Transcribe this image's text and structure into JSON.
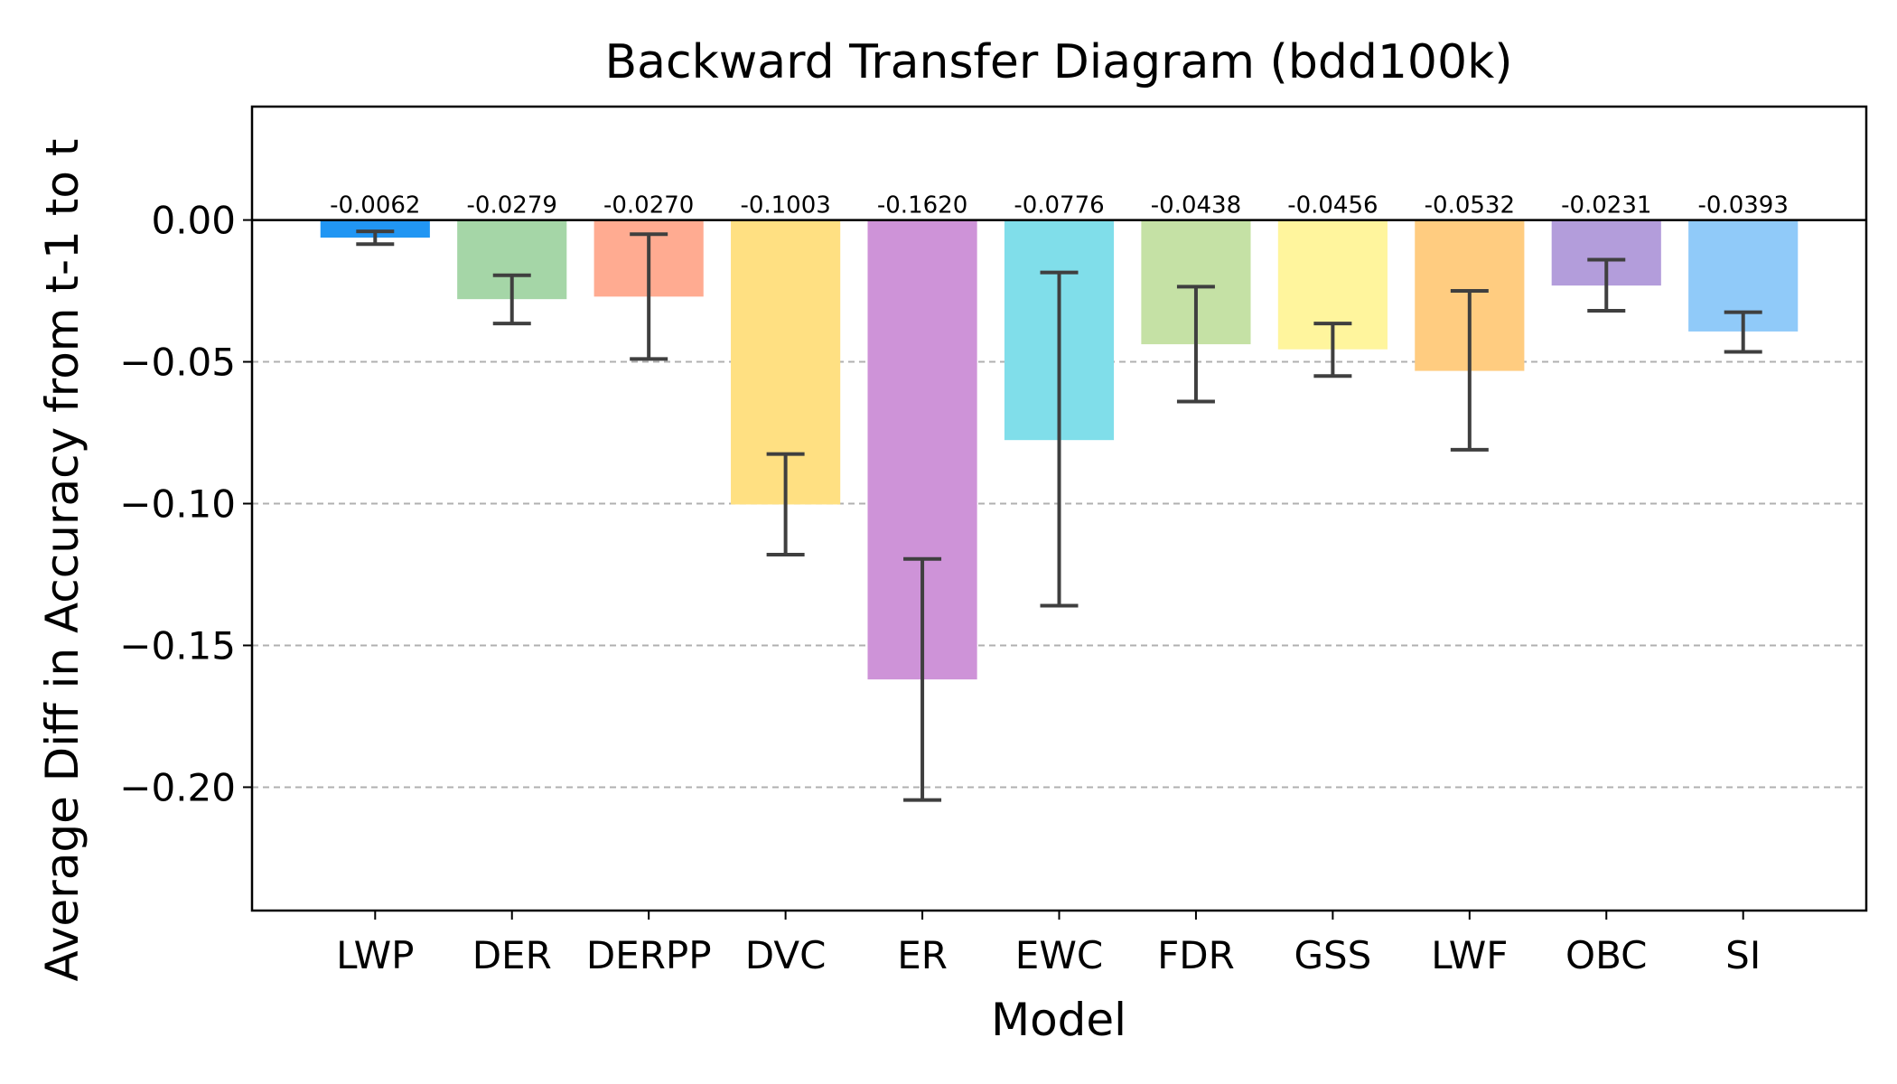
{
  "chart_data": {
    "type": "bar",
    "title": "Backward Transfer Diagram (bdd100k)",
    "xlabel": "Model",
    "ylabel": "Average Diff in Accuracy from t-1 to t",
    "ylim": [
      -0.2435,
      0.04
    ],
    "yticks": [
      0.0,
      -0.05,
      -0.1,
      -0.15,
      -0.2
    ],
    "ytick_labels": [
      "0.00",
      "−0.05",
      "−0.10",
      "−0.15",
      "−0.20"
    ],
    "grid": "horizontal dashed at y ticks",
    "categories": [
      "LWP",
      "DER",
      "DERPP",
      "DVC",
      "ER",
      "EWC",
      "FDR",
      "GSS",
      "LWF",
      "OBC",
      "SI"
    ],
    "values": [
      -0.0062,
      -0.0279,
      -0.027,
      -0.1003,
      -0.162,
      -0.0776,
      -0.0438,
      -0.0456,
      -0.0532,
      -0.0231,
      -0.0393
    ],
    "value_labels": [
      "-0.0062",
      "-0.0279",
      "-0.0270",
      "-0.1003",
      "-0.1620",
      "-0.0776",
      "-0.0438",
      "-0.0456",
      "-0.0532",
      "-0.0231",
      "-0.0393"
    ],
    "error_low": [
      -0.0085,
      -0.0365,
      -0.049,
      -0.118,
      -0.2045,
      -0.136,
      -0.064,
      -0.055,
      -0.081,
      -0.032,
      -0.0465
    ],
    "error_high": [
      -0.004,
      -0.0195,
      -0.005,
      -0.0825,
      -0.1195,
      -0.0185,
      -0.0235,
      -0.0365,
      -0.025,
      -0.014,
      -0.0325
    ],
    "colors": [
      "#2196f3",
      "#a5d6a7",
      "#ffab91",
      "#ffe082",
      "#ce93d8",
      "#80deea",
      "#c5e1a5",
      "#fff59d",
      "#ffcc80",
      "#b39ddb",
      "#90caf9"
    ]
  }
}
